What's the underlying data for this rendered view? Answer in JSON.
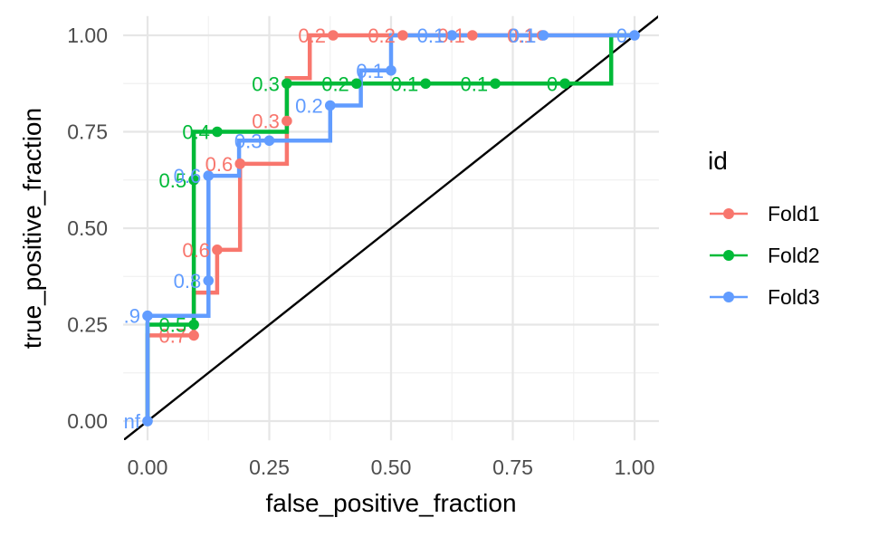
{
  "chart_data": {
    "type": "line",
    "xlabel": "false_positive_fraction",
    "ylabel": "true_positive_fraction",
    "xlim": [
      -0.05,
      1.05
    ],
    "ylim": [
      -0.05,
      1.05
    ],
    "x_ticks": [
      "0.00",
      "0.25",
      "0.50",
      "0.75",
      "1.00"
    ],
    "y_ticks": [
      "0.00",
      "0.25",
      "0.50",
      "0.75",
      "1.00"
    ],
    "grid": true,
    "legend_title": "id",
    "legend_position": "right",
    "reference_line": {
      "from": [
        0,
        0
      ],
      "to": [
        1,
        1
      ],
      "color": "#000000"
    },
    "series": [
      {
        "name": "Fold1",
        "color": "#F8766D",
        "step": [
          [
            0,
            0
          ],
          [
            0,
            0.222
          ],
          [
            0.095,
            0.222
          ],
          [
            0.095,
            0.333
          ],
          [
            0.143,
            0.333
          ],
          [
            0.143,
            0.444
          ],
          [
            0.19,
            0.444
          ],
          [
            0.19,
            0.667
          ],
          [
            0.286,
            0.667
          ],
          [
            0.286,
            0.778
          ],
          [
            0.286,
            0.889
          ],
          [
            0.333,
            0.889
          ],
          [
            0.333,
            1.0
          ],
          [
            1.0,
            1.0
          ]
        ],
        "points": [
          {
            "x": 0.095,
            "y": 0.222,
            "label": "0.7"
          },
          {
            "x": 0.143,
            "y": 0.444,
            "label": "0.6"
          },
          {
            "x": 0.19,
            "y": 0.667,
            "label": "0.6"
          },
          {
            "x": 0.286,
            "y": 0.778,
            "label": "0.3"
          },
          {
            "x": 0.381,
            "y": 1.0,
            "label": "0.2"
          },
          {
            "x": 0.524,
            "y": 1.0,
            "label": "0.2"
          },
          {
            "x": 0.667,
            "y": 1.0,
            "label": "0.1"
          },
          {
            "x": 0.81,
            "y": 1.0,
            "label": "0.1"
          }
        ]
      },
      {
        "name": "Fold2",
        "color": "#00BA38",
        "step": [
          [
            0,
            0
          ],
          [
            0,
            0.25
          ],
          [
            0.095,
            0.25
          ],
          [
            0.095,
            0.75
          ],
          [
            0.286,
            0.75
          ],
          [
            0.286,
            0.875
          ],
          [
            0.952,
            0.875
          ],
          [
            0.952,
            1.0
          ],
          [
            1.0,
            1.0
          ]
        ],
        "points": [
          {
            "x": 0.095,
            "y": 0.25,
            "label": "0.5"
          },
          {
            "x": 0.095,
            "y": 0.625,
            "label": "0.5"
          },
          {
            "x": 0.143,
            "y": 0.75,
            "label": "0.4"
          },
          {
            "x": 0.286,
            "y": 0.875,
            "label": "0.3"
          },
          {
            "x": 0.429,
            "y": 0.875,
            "label": "0.2"
          },
          {
            "x": 0.571,
            "y": 0.875,
            "label": "0.1"
          },
          {
            "x": 0.714,
            "y": 0.875,
            "label": "0.1"
          },
          {
            "x": 0.857,
            "y": 0.875,
            "label": "0"
          }
        ]
      },
      {
        "name": "Fold3",
        "color": "#619CFF",
        "step": [
          [
            0,
            0
          ],
          [
            0,
            0.273
          ],
          [
            0.125,
            0.273
          ],
          [
            0.125,
            0.636
          ],
          [
            0.188,
            0.636
          ],
          [
            0.188,
            0.727
          ],
          [
            0.375,
            0.727
          ],
          [
            0.375,
            0.818
          ],
          [
            0.438,
            0.818
          ],
          [
            0.438,
            0.909
          ],
          [
            0.5,
            0.909
          ],
          [
            0.5,
            1.0
          ],
          [
            1.0,
            1.0
          ]
        ],
        "points": [
          {
            "x": 0.0,
            "y": 0.0,
            "label": "Inf"
          },
          {
            "x": 0.0,
            "y": 0.273,
            "label": "0.9"
          },
          {
            "x": 0.125,
            "y": 0.364,
            "label": "0.8"
          },
          {
            "x": 0.125,
            "y": 0.636,
            "label": "0.6"
          },
          {
            "x": 0.25,
            "y": 0.727,
            "label": "0.3"
          },
          {
            "x": 0.375,
            "y": 0.818,
            "label": "0.2"
          },
          {
            "x": 0.5,
            "y": 0.909,
            "label": "0.1"
          },
          {
            "x": 0.625,
            "y": 1.0,
            "label": "0.1"
          },
          {
            "x": 0.813,
            "y": 1.0,
            "label": "0.1"
          },
          {
            "x": 1.0,
            "y": 1.0,
            "label": "0"
          }
        ]
      }
    ]
  }
}
